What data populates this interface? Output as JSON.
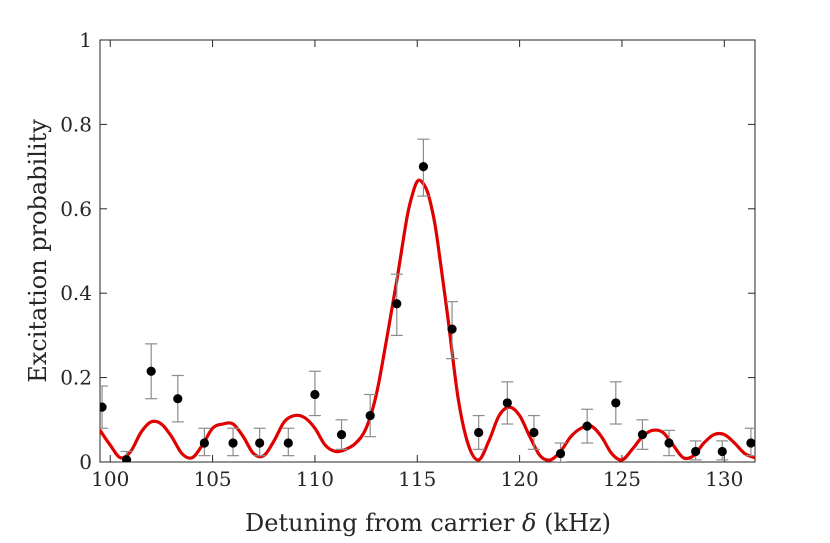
{
  "chart_data": {
    "type": "scatter",
    "xlabel_prefix": "Detuning from carrier ",
    "xlabel_symbol": "δ",
    "xlabel_suffix": " (kHz)",
    "ylabel": "Excitation probability",
    "xlim": [
      99.5,
      131.5
    ],
    "ylim": [
      0,
      1
    ],
    "xticks": [
      100,
      105,
      110,
      115,
      120,
      125,
      130
    ],
    "yticks": [
      0,
      0.2,
      0.4,
      0.6,
      0.8,
      1
    ],
    "ytick_labels": [
      "0",
      "0.2",
      "0.4",
      "0.6",
      "0.8",
      "1"
    ],
    "grid": false,
    "colors": {
      "fit": "#e00000",
      "points": "#000000",
      "errorbars": "#8c8c8c",
      "axes": "#262626"
    },
    "measurements": {
      "x": [
        99.6,
        100.8,
        102.0,
        103.3,
        104.6,
        106.0,
        107.3,
        108.7,
        110.0,
        111.3,
        112.7,
        114.0,
        115.3,
        116.7,
        118.0,
        119.4,
        120.7,
        122.0,
        123.3,
        124.7,
        126.0,
        127.3,
        128.6,
        129.9,
        131.3
      ],
      "y": [
        0.13,
        0.005,
        0.215,
        0.15,
        0.045,
        0.045,
        0.045,
        0.045,
        0.16,
        0.065,
        0.11,
        0.375,
        0.7,
        0.315,
        0.07,
        0.14,
        0.07,
        0.02,
        0.085,
        0.14,
        0.065,
        0.045,
        0.025,
        0.025,
        0.045
      ],
      "yerr_low": [
        0.05,
        0.02,
        0.065,
        0.055,
        0.03,
        0.03,
        0.03,
        0.03,
        0.05,
        0.035,
        0.05,
        0.075,
        0.07,
        0.07,
        0.04,
        0.05,
        0.04,
        0.02,
        0.04,
        0.05,
        0.035,
        0.03,
        0.02,
        0.02,
        0.03
      ],
      "yerr_high": [
        0.05,
        0.02,
        0.065,
        0.055,
        0.035,
        0.035,
        0.035,
        0.035,
        0.055,
        0.035,
        0.05,
        0.07,
        0.065,
        0.065,
        0.04,
        0.05,
        0.04,
        0.025,
        0.04,
        0.05,
        0.035,
        0.03,
        0.025,
        0.025,
        0.035
      ]
    },
    "fit_curve": {
      "x": [
        99.5,
        100.0,
        100.5,
        101.0,
        101.5,
        102.0,
        102.5,
        103.0,
        103.5,
        104.0,
        104.5,
        105.0,
        105.5,
        106.0,
        106.5,
        107.0,
        107.5,
        108.0,
        108.5,
        109.0,
        109.5,
        110.0,
        110.5,
        111.0,
        111.5,
        112.0,
        112.5,
        113.0,
        113.5,
        114.0,
        114.5,
        114.8,
        115.0,
        115.2,
        115.5,
        115.8,
        116.0,
        116.5,
        117.0,
        117.5,
        118.0,
        118.5,
        119.0,
        119.5,
        120.0,
        120.5,
        121.0,
        121.5,
        122.0,
        122.5,
        123.0,
        123.5,
        124.0,
        124.5,
        125.0,
        125.5,
        126.0,
        126.5,
        127.0,
        127.5,
        128.0,
        128.5,
        129.0,
        129.5,
        130.0,
        130.5,
        131.0,
        131.5
      ],
      "y": [
        0.075,
        0.04,
        0.01,
        0.025,
        0.07,
        0.095,
        0.09,
        0.06,
        0.02,
        0.01,
        0.04,
        0.08,
        0.09,
        0.09,
        0.06,
        0.02,
        0.015,
        0.05,
        0.095,
        0.11,
        0.105,
        0.08,
        0.04,
        0.025,
        0.03,
        0.045,
        0.08,
        0.16,
        0.29,
        0.43,
        0.58,
        0.64,
        0.665,
        0.665,
        0.64,
        0.58,
        0.52,
        0.34,
        0.15,
        0.04,
        0.005,
        0.05,
        0.11,
        0.13,
        0.11,
        0.06,
        0.015,
        0.005,
        0.025,
        0.06,
        0.08,
        0.085,
        0.06,
        0.02,
        0.005,
        0.03,
        0.06,
        0.075,
        0.07,
        0.04,
        0.01,
        0.015,
        0.045,
        0.065,
        0.065,
        0.045,
        0.02,
        0.01
      ]
    }
  }
}
